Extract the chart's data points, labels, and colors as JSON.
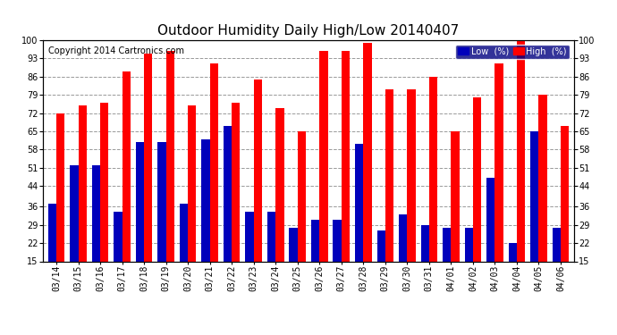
{
  "title": "Outdoor Humidity Daily High/Low 20140407",
  "copyright": "Copyright 2014 Cartronics.com",
  "legend_low": "Low  (%)",
  "legend_high": "High  (%)",
  "dates": [
    "03/14",
    "03/15",
    "03/16",
    "03/17",
    "03/18",
    "03/19",
    "03/20",
    "03/21",
    "03/22",
    "03/23",
    "03/24",
    "03/25",
    "03/26",
    "03/27",
    "03/28",
    "03/29",
    "03/30",
    "03/31",
    "04/01",
    "04/02",
    "04/03",
    "04/04",
    "04/05",
    "04/06"
  ],
  "high": [
    72,
    75,
    76,
    88,
    95,
    96,
    75,
    91,
    76,
    85,
    74,
    65,
    96,
    96,
    99,
    81,
    81,
    86,
    65,
    78,
    91,
    100,
    79,
    67
  ],
  "low": [
    37,
    52,
    52,
    34,
    61,
    61,
    37,
    62,
    67,
    34,
    34,
    28,
    31,
    31,
    60,
    27,
    33,
    29,
    28,
    28,
    47,
    22,
    65,
    28
  ],
  "ylim_min": 15,
  "ylim_max": 100,
  "yticks": [
    15,
    22,
    29,
    36,
    44,
    51,
    58,
    65,
    72,
    79,
    86,
    93,
    100
  ],
  "bar_color_high": "#ff0000",
  "bar_color_low": "#0000bb",
  "bg_color": "#ffffff",
  "grid_color": "#999999",
  "title_fontsize": 11,
  "copyright_fontsize": 7,
  "bar_width": 0.38,
  "fig_width": 6.9,
  "fig_height": 3.75,
  "dpi": 100
}
